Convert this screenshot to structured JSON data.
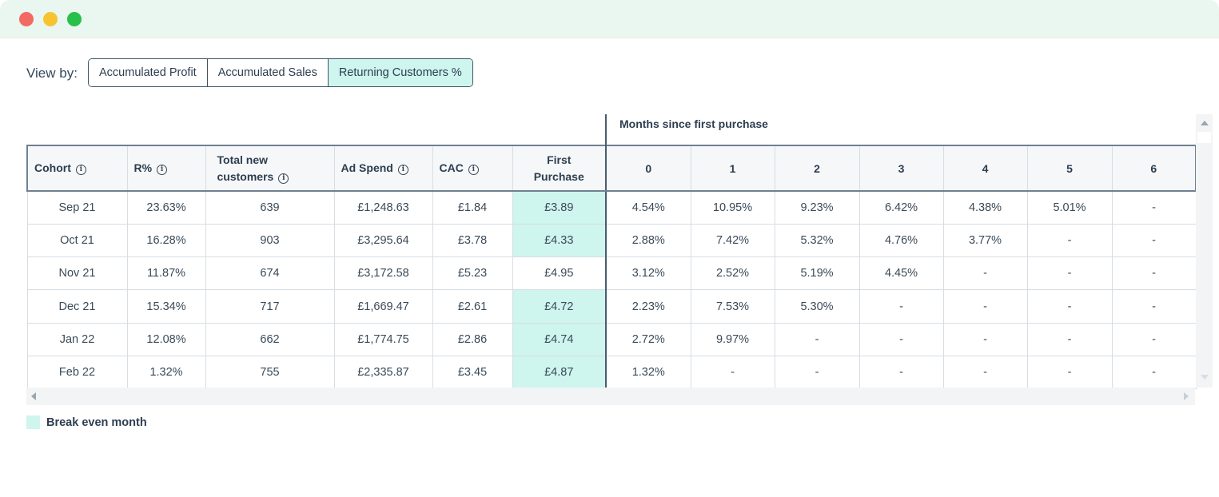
{
  "window": {
    "controls": [
      "close",
      "minimize",
      "maximize"
    ]
  },
  "view_by": {
    "label": "View by:",
    "options": [
      "Accumulated Profit",
      "Accumulated Sales",
      "Returning Customers %"
    ],
    "selected": "Returning Customers %"
  },
  "table": {
    "group_header": "Months since first purchase",
    "columns": {
      "cohort": "Cohort",
      "r_pct": "R%",
      "total_new_line1": "Total new",
      "total_new_line2": "customers",
      "ad_spend": "Ad Spend",
      "cac": "CAC",
      "first_purchase_line1": "First",
      "first_purchase_line2": "Purchase",
      "months": [
        "0",
        "1",
        "2",
        "3",
        "4",
        "5",
        "6"
      ]
    },
    "rows": [
      {
        "cohort": "Sep 21",
        "r_pct": "23.63%",
        "total_new": "639",
        "ad_spend": "£1,248.63",
        "cac": "£1.84",
        "first_purchase": "£3.89",
        "break_even_first": true,
        "months": [
          "4.54%",
          "10.95%",
          "9.23%",
          "6.42%",
          "4.38%",
          "5.01%",
          "-"
        ]
      },
      {
        "cohort": "Oct 21",
        "r_pct": "16.28%",
        "total_new": "903",
        "ad_spend": "£3,295.64",
        "cac": "£3.78",
        "first_purchase": "£4.33",
        "break_even_first": true,
        "months": [
          "2.88%",
          "7.42%",
          "5.32%",
          "4.76%",
          "3.77%",
          "-",
          "-"
        ]
      },
      {
        "cohort": "Nov 21",
        "r_pct": "11.87%",
        "total_new": "674",
        "ad_spend": "£3,172.58",
        "cac": "£5.23",
        "first_purchase": "£4.95",
        "break_even_first": false,
        "months": [
          "3.12%",
          "2.52%",
          "5.19%",
          "4.45%",
          "-",
          "-",
          "-"
        ]
      },
      {
        "cohort": "Dec 21",
        "r_pct": "15.34%",
        "total_new": "717",
        "ad_spend": "£1,669.47",
        "cac": "£2.61",
        "first_purchase": "£4.72",
        "break_even_first": true,
        "months": [
          "2.23%",
          "7.53%",
          "5.30%",
          "-",
          "-",
          "-",
          "-"
        ]
      },
      {
        "cohort": "Jan 22",
        "r_pct": "12.08%",
        "total_new": "662",
        "ad_spend": "£1,774.75",
        "cac": "£2.86",
        "first_purchase": "£4.74",
        "break_even_first": true,
        "months": [
          "2.72%",
          "9.97%",
          "-",
          "-",
          "-",
          "-",
          "-"
        ]
      },
      {
        "cohort": "Feb 22",
        "r_pct": "1.32%",
        "total_new": "755",
        "ad_spend": "£2,335.87",
        "cac": "£3.45",
        "first_purchase": "£4.87",
        "break_even_first": true,
        "months": [
          "1.32%",
          "-",
          "-",
          "-",
          "-",
          "-",
          "-"
        ]
      }
    ]
  },
  "legend": {
    "break_even_label": "Break even month"
  },
  "colors": {
    "break_even": "#cef5ee",
    "titlebar": "#eaf7f1",
    "text": "#2c3e50"
  }
}
